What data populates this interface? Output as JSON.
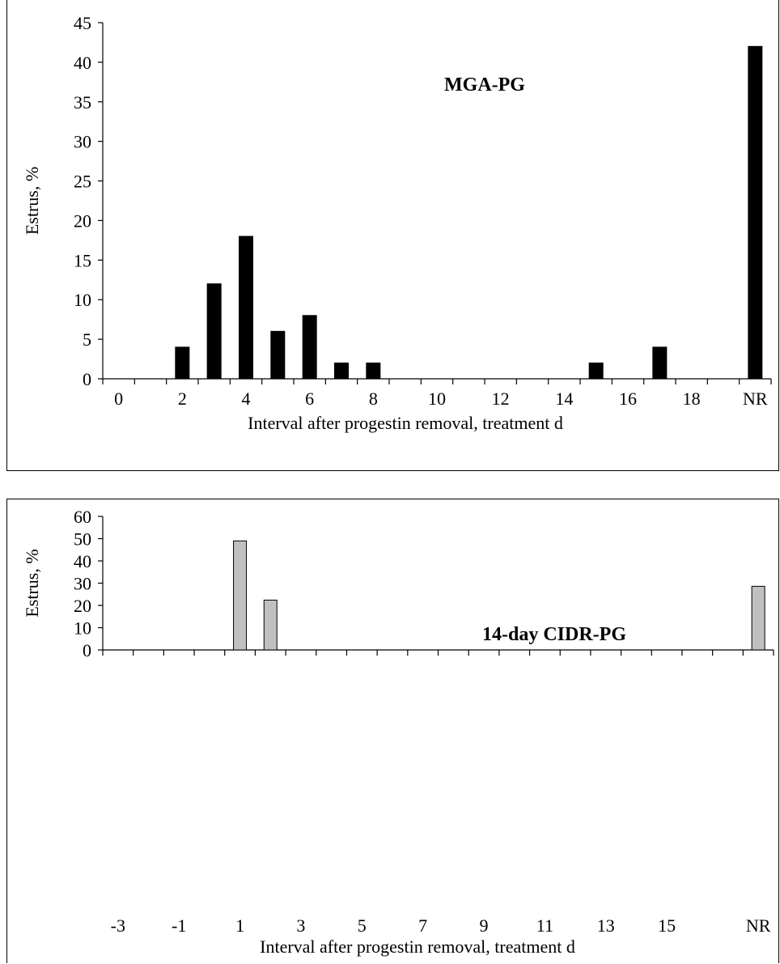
{
  "chart_data": [
    {
      "type": "bar",
      "title": "",
      "annotation": "MGA-PG",
      "xlabel": "Interval after progestin removal, treatment d",
      "ylabel": "Estrus, %",
      "ylim": [
        0,
        45
      ],
      "yticks": [
        "0",
        "5",
        "10",
        "15",
        "20",
        "25",
        "30",
        "35",
        "40",
        "45"
      ],
      "categories": [
        "0",
        "1",
        "2",
        "3",
        "4",
        "5",
        "6",
        "7",
        "8",
        "9",
        "10",
        "11",
        "12",
        "13",
        "14",
        "15",
        "16",
        "17",
        "18",
        "19",
        "NR"
      ],
      "xtick_labels": [
        "0",
        "",
        "2",
        "",
        "4",
        "",
        "6",
        "",
        "8",
        "",
        "10",
        "",
        "12",
        "",
        "14",
        "",
        "16",
        "",
        "18",
        "",
        "NR"
      ],
      "values": [
        0,
        0,
        4,
        12,
        18,
        6,
        8,
        2,
        2,
        0,
        0,
        0,
        0,
        0,
        0,
        2,
        0,
        4,
        0,
        0,
        42
      ],
      "bar_color": "#000000",
      "grid": false,
      "legend": "none"
    },
    {
      "type": "bar",
      "title": "",
      "annotation": "14-day CIDR-PG",
      "xlabel": "Interval after progestin removal, treatment d",
      "ylabel": "Estrus, %",
      "ylim": [
        0,
        60
      ],
      "yticks": [
        "0",
        "10",
        "20",
        "30",
        "40",
        "50",
        "60"
      ],
      "categories": [
        "-3",
        "-2",
        "-1",
        "0",
        "1",
        "2",
        "3",
        "4",
        "5",
        "6",
        "7",
        "8",
        "9",
        "10",
        "11",
        "12",
        "13",
        "14",
        "15",
        "16",
        "17",
        "NR"
      ],
      "xtick_labels": [
        "-3",
        "",
        "-1",
        "",
        "1",
        "",
        "3",
        "",
        "5",
        "",
        "7",
        "",
        "9",
        "",
        "11",
        "",
        "13",
        "",
        "15",
        "",
        "",
        "NR"
      ],
      "values": [
        0,
        0,
        0,
        0,
        49,
        22.4,
        0,
        0,
        0,
        0,
        0,
        0,
        0,
        0,
        0,
        0,
        0,
        0,
        0,
        0,
        0,
        28.6
      ],
      "bar_color": "#c0c0c0",
      "grid": false,
      "legend": "none"
    }
  ]
}
